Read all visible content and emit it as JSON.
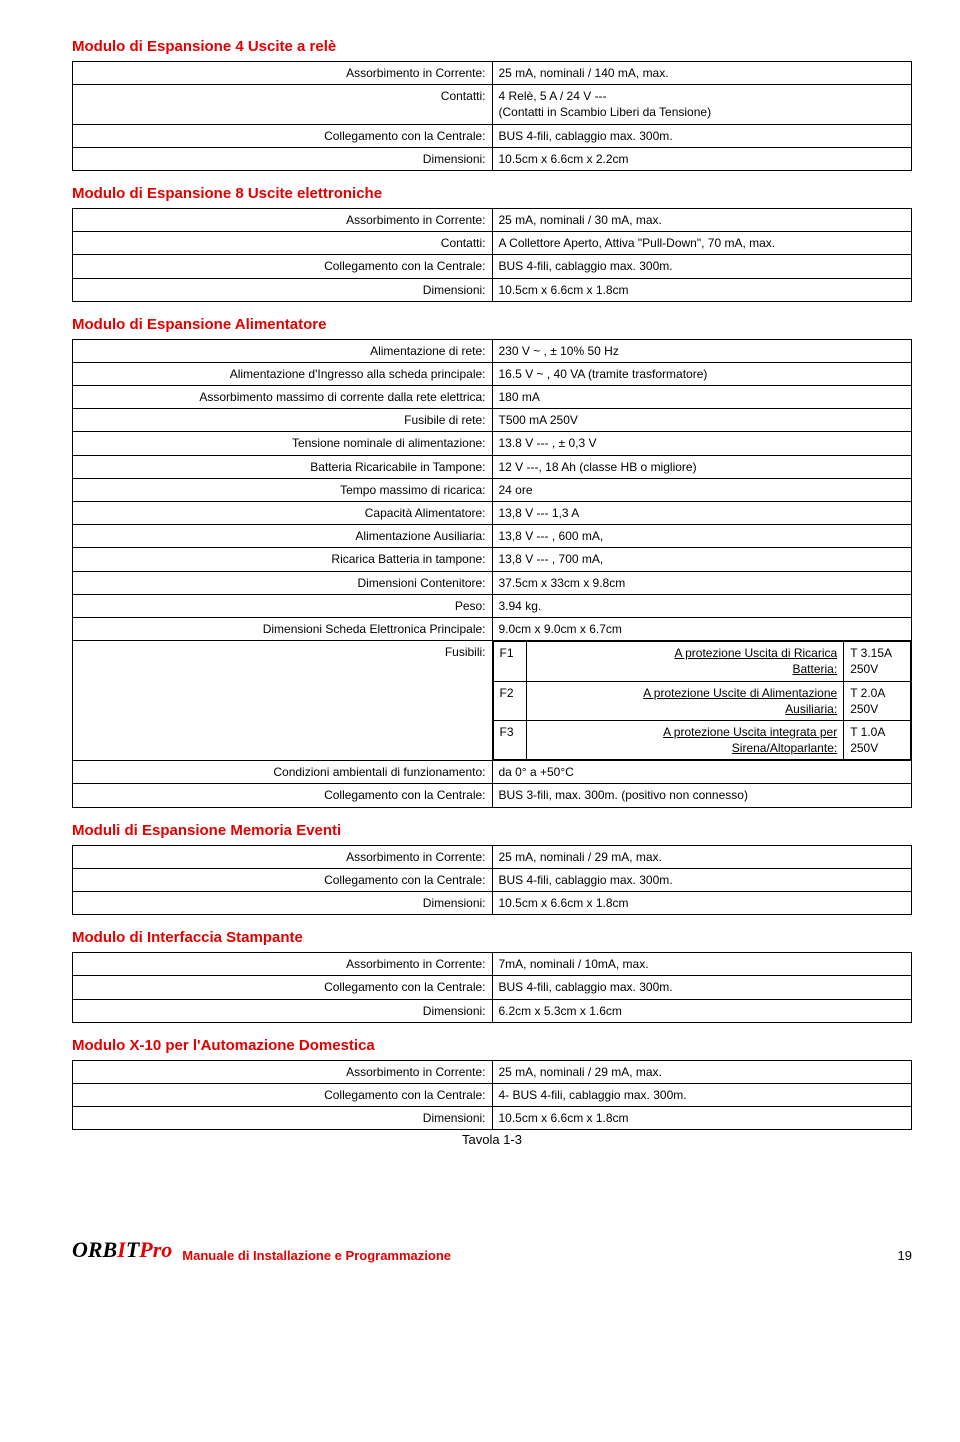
{
  "sections": {
    "rele": {
      "title": "Modulo di Espansione 4 Uscite a relè",
      "rows": [
        [
          "Assorbimento in Corrente:",
          "25 mA, nominali / 140 mA, max."
        ],
        [
          "Contatti:",
          "4 Relè,  5 A / 24 V ---\n(Contatti in Scambio Liberi da Tensione)"
        ],
        [
          "Collegamento con la Centrale:",
          "BUS 4-fili, cablaggio max. 300m."
        ],
        [
          "Dimensioni:",
          "10.5cm x 6.6cm x 2.2cm"
        ]
      ]
    },
    "elettroniche": {
      "title": "Modulo di Espansione 8 Uscite elettroniche",
      "rows": [
        [
          "Assorbimento in Corrente:",
          "25 mA, nominali / 30 mA, max."
        ],
        [
          "Contatti:",
          "A Collettore Aperto, Attiva \"Pull-Down\", 70 mA, max."
        ],
        [
          "Collegamento con la Centrale:",
          "BUS 4-fili, cablaggio max. 300m."
        ],
        [
          "Dimensioni:",
          "10.5cm x 6.6cm x 1.8cm"
        ]
      ]
    },
    "alimentatore": {
      "title": "Modulo di Espansione Alimentatore",
      "rows": [
        [
          "Alimentazione di rete:",
          "230 V ~ , ± 10% 50 Hz"
        ],
        [
          "Alimentazione d'Ingresso alla scheda principale:",
          "16.5 V ~ , 40 VA (tramite trasformatore)"
        ],
        [
          "Assorbimento massimo di corrente dalla rete elettrica:",
          "180 mA"
        ],
        [
          "Fusibile di rete:",
          "T500 mA 250V"
        ],
        [
          "Tensione nominale di alimentazione:",
          "13.8 V --- , ± 0,3 V"
        ],
        [
          "Batteria Ricaricabile in Tampone:",
          "12 V ---, 18 Ah (classe HB o migliore)"
        ],
        [
          "Tempo massimo di ricarica:",
          "24 ore"
        ],
        [
          "Capacità Alimentatore:",
          "13,8 V ---  1,3 A"
        ],
        [
          "Alimentazione Ausiliaria:",
          "13,8 V --- , 600 mA,"
        ],
        [
          "Ricarica Batteria in tampone:",
          "13,8 V --- , 700 mA,"
        ],
        [
          "Dimensioni Contenitore:",
          "37.5cm x 33cm x 9.8cm"
        ],
        [
          "Peso:",
          "3.94 kg."
        ],
        [
          "Dimensioni Scheda Elettronica Principale:",
          "9.0cm x 9.0cm x 6.7cm"
        ]
      ],
      "fusibili_label": "Fusibili:",
      "fusibili": [
        {
          "fn": "F1",
          "line1": "A protezione Uscita di Ricarica",
          "line2": "Batteria:",
          "rating": "T 3.15A\n250V"
        },
        {
          "fn": "F2",
          "line1": "A protezione Uscite di Alimentazione",
          "line2": "Ausiliaria:",
          "rating": "T 2.0A\n250V"
        },
        {
          "fn": "F3",
          "line1": "A protezione Uscita integrata per",
          "line2": "Sirena/Altoparlante:",
          "rating": "T 1.0A\n250V"
        }
      ],
      "tail": [
        [
          "Condizioni ambientali di funzionamento:",
          "da 0° a +50°C"
        ],
        [
          "Collegamento con la Centrale:",
          "BUS 3-fili, max. 300m. (positivo non connesso)"
        ]
      ]
    },
    "memoria": {
      "title": "Moduli di Espansione Memoria Eventi",
      "rows": [
        [
          "Assorbimento in Corrente:",
          "25 mA, nominali / 29 mA, max."
        ],
        [
          "Collegamento con la Centrale:",
          "BUS 4-fili, cablaggio max. 300m."
        ],
        [
          "Dimensioni:",
          "10.5cm x 6.6cm x 1.8cm"
        ]
      ]
    },
    "stampante": {
      "title": "Modulo di Interfaccia Stampante",
      "rows": [
        [
          "Assorbimento in Corrente:",
          "7mA, nominali / 10mA, max."
        ],
        [
          "Collegamento con la Centrale:",
          "BUS 4-fili, cablaggio max. 300m."
        ],
        [
          "Dimensioni:",
          "6.2cm x 5.3cm x 1.6cm"
        ]
      ]
    },
    "x10": {
      "title": "Modulo  X-10 per l'Automazione Domestica",
      "rows": [
        [
          "Assorbimento in Corrente:",
          "25 mA, nominali / 29 mA, max."
        ],
        [
          "Collegamento con la Centrale:",
          "4- BUS 4-fili, cablaggio max. 300m."
        ],
        [
          "Dimensioni:",
          "10.5cm x 6.6cm x 1.8cm"
        ]
      ]
    }
  },
  "tavola": "Tavola 1-3",
  "footer": {
    "logo_a": "ORB",
    "logo_b": "I",
    "logo_c": "T",
    "logo_d": "Pro",
    "title": "Manuale di Installazione e Programmazione",
    "page": "19"
  }
}
